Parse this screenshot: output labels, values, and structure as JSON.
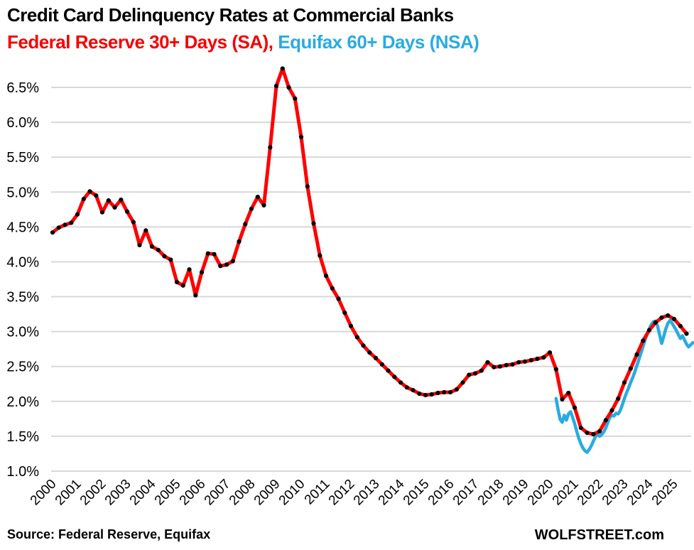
{
  "header": {
    "title": "Credit Card Delinquency Rates at Commercial Banks",
    "subtitle_red": "Federal Reserve 30+ Days (SA),",
    "subtitle_blue": "Equifax 60+ Days (NSA)"
  },
  "footer": {
    "source": "Source: Federal Reserve, Equifax",
    "brand": "WOLFSTREET.com"
  },
  "colors": {
    "red": "#ff0000",
    "blue": "#29abe2",
    "grid": "#d8d8d8",
    "marker": "#000000",
    "text": "#000000"
  },
  "chart_data": {
    "type": "line",
    "title": "Credit Card Delinquency Rates at Commercial Banks",
    "xlabel": "",
    "ylabel": "",
    "grid": "horizontal",
    "legend_position": "in-subtitle",
    "y_axis": {
      "unit": "%",
      "min": 1.0,
      "max": 6.5,
      "step": 0.5,
      "tick_values": [
        6.5,
        6.0,
        5.5,
        5.0,
        4.5,
        4.0,
        3.5,
        3.0,
        2.5,
        2.0,
        1.5,
        1.0
      ],
      "tick_labels": [
        "6.5%",
        "6.0%",
        "5.5%",
        "5.0%",
        "4.5%",
        "4.0%",
        "3.5%",
        "3.0%",
        "2.5%",
        "2.0%",
        "1.5%",
        "1.0%"
      ]
    },
    "x_axis": {
      "years": [
        2000,
        2001,
        2002,
        2003,
        2004,
        2005,
        2006,
        2007,
        2008,
        2009,
        2010,
        2011,
        2012,
        2013,
        2014,
        2015,
        2016,
        2017,
        2018,
        2019,
        2020,
        2021,
        2022,
        2023,
        2024,
        2025
      ]
    },
    "series": [
      {
        "name": "Federal Reserve 30+ Days (SA)",
        "color": "#ff0000",
        "markers": true,
        "marker_color": "#000000",
        "frequency": "quarterly",
        "start_year": 2000.0,
        "points_per_year": 4,
        "values": [
          4.42,
          4.49,
          4.53,
          4.56,
          4.68,
          4.9,
          5.01,
          4.95,
          4.71,
          4.88,
          4.78,
          4.89,
          4.72,
          4.57,
          4.24,
          4.45,
          4.22,
          4.17,
          4.08,
          4.03,
          3.71,
          3.66,
          3.89,
          3.52,
          3.85,
          4.12,
          4.11,
          3.94,
          3.96,
          4.01,
          4.29,
          4.54,
          4.76,
          4.93,
          4.81,
          5.64,
          6.52,
          6.77,
          6.5,
          6.34,
          5.79,
          5.08,
          4.55,
          4.09,
          3.8,
          3.62,
          3.47,
          3.27,
          3.08,
          2.92,
          2.8,
          2.7,
          2.62,
          2.53,
          2.44,
          2.35,
          2.27,
          2.2,
          2.16,
          2.11,
          2.09,
          2.1,
          2.12,
          2.13,
          2.13,
          2.17,
          2.27,
          2.38,
          2.4,
          2.44,
          2.56,
          2.49,
          2.5,
          2.52,
          2.53,
          2.56,
          2.57,
          2.59,
          2.61,
          2.63,
          2.7,
          2.46,
          2.03,
          2.12,
          1.91,
          1.62,
          1.55,
          1.53,
          1.57,
          1.73,
          1.87,
          2.04,
          2.27,
          2.47,
          2.67,
          2.87,
          3.02,
          3.13,
          3.2,
          3.23,
          3.18,
          3.08,
          2.97
        ]
      },
      {
        "name": "Equifax 60+ Days (NSA)",
        "color": "#29abe2",
        "markers": false,
        "frequency": "monthly",
        "start_year": 2020.25,
        "points_per_year": 12,
        "values": [
          2.04,
          1.88,
          1.74,
          1.7,
          1.8,
          1.73,
          1.82,
          1.85,
          1.77,
          1.68,
          1.57,
          1.47,
          1.39,
          1.33,
          1.29,
          1.27,
          1.31,
          1.36,
          1.43,
          1.49,
          1.53,
          1.5,
          1.52,
          1.56,
          1.62,
          1.7,
          1.77,
          1.8,
          1.79,
          1.83,
          1.82,
          1.87,
          1.95,
          2.04,
          2.12,
          2.19,
          2.27,
          2.34,
          2.42,
          2.51,
          2.6,
          2.69,
          2.79,
          2.88,
          2.97,
          3.04,
          3.1,
          3.14,
          3.15,
          3.08,
          2.95,
          2.83,
          2.93,
          3.04,
          3.12,
          3.16,
          3.12,
          3.07,
          3.02,
          2.96,
          2.9,
          2.94,
          2.88,
          2.82,
          2.78,
          2.81,
          2.84
        ]
      }
    ]
  }
}
